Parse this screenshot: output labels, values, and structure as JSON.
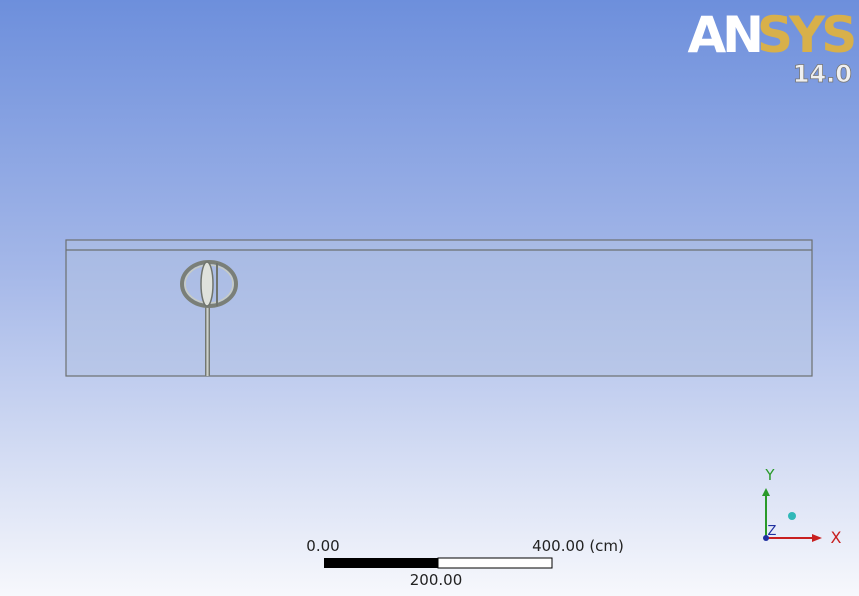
{
  "logo": {
    "brand_left": "AN",
    "brand_right": "SYS",
    "version": "14.0"
  },
  "scale_bar": {
    "start_label": "0.00",
    "end_label": "400.00 (cm)",
    "mid_label": "200.00"
  },
  "triad": {
    "y": "Y",
    "x": "X",
    "z": "Z"
  }
}
